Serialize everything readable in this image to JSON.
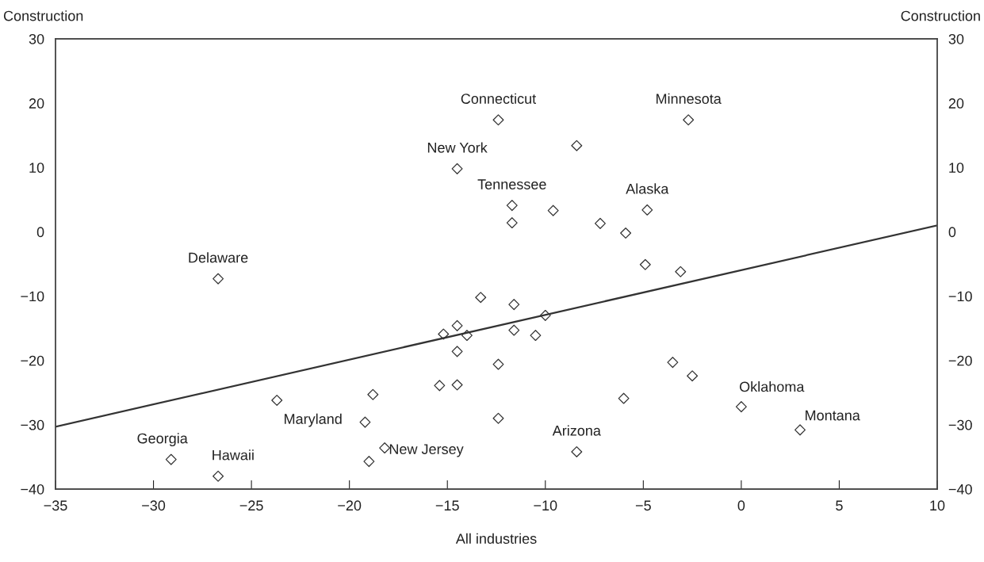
{
  "chart_data": {
    "type": "scatter",
    "xlabel": "All industries",
    "ylabel": "Construction",
    "y2label": "Construction",
    "xlim": [
      -35,
      10
    ],
    "xticks": [
      -35,
      -30,
      -25,
      -20,
      -15,
      -10,
      -5,
      0,
      5,
      10
    ],
    "ylim": [
      -40,
      30
    ],
    "yticks": [
      -40,
      -30,
      -20,
      -10,
      0,
      10,
      20,
      30
    ],
    "y2lim": [
      -40,
      30
    ],
    "y2ticks": [
      -40,
      -30,
      -20,
      -10,
      0,
      10,
      20,
      30
    ],
    "grid": false,
    "series": [
      {
        "marker": "diamond",
        "color": "#333333",
        "x": [
          -12.4,
          -2.7,
          -8.4,
          -14.5,
          -11.7,
          -9.6,
          -11.7,
          -7.2,
          -4.8,
          -5.9,
          -26.7,
          -4.9,
          -3.1,
          -13.3,
          -11.6,
          -10.0,
          -14.5,
          -15.2,
          -14.0,
          -11.6,
          -10.5,
          -14.5,
          -12.4,
          -3.5,
          -2.5,
          -15.4,
          -14.5,
          -18.8,
          -23.7,
          -6.0,
          0,
          3.0,
          -19.2,
          -12.4,
          -29.1,
          -26.7,
          -18.2,
          -19.0,
          -8.4
        ],
        "values": [
          17.4,
          17.4,
          13.4,
          9.8,
          4.1,
          3.3,
          1.4,
          1.3,
          3.4,
          -0.2,
          -7.3,
          -5.1,
          -6.2,
          -10.2,
          -11.3,
          -13.0,
          -14.6,
          -15.9,
          -16.1,
          -15.3,
          -16.1,
          -18.6,
          -20.6,
          -20.3,
          -22.4,
          -23.9,
          -23.8,
          -25.3,
          -26.2,
          -25.9,
          -27.2,
          -30.8,
          -29.6,
          -29.0,
          -35.4,
          -38.0,
          -33.6,
          -35.7,
          -34.2
        ]
      },
      {
        "type": "line",
        "marker": "none",
        "color": "#333333",
        "x": [
          -35,
          10
        ],
        "values": [
          -30.3,
          1.0
        ]
      }
    ],
    "annotations": [
      {
        "text": "Connecticut",
        "x": -12.4,
        "y": 17.4
      },
      {
        "text": "Minnesota",
        "x": -2.7,
        "y": 17.4
      },
      {
        "text": "New York",
        "x": -14.5,
        "y": 9.8
      },
      {
        "text": "Tennessee",
        "x": -11.7,
        "y": 4.1
      },
      {
        "text": "Alaska",
        "x": -4.8,
        "y": 3.4
      },
      {
        "text": "Delaware",
        "x": -26.7,
        "y": -7.3
      },
      {
        "text": "Maryland",
        "x": -23.7,
        "y": -26.2
      },
      {
        "text": "Oklahoma",
        "x": 0,
        "y": -27.2
      },
      {
        "text": "Montana",
        "x": 3.0,
        "y": -30.8
      },
      {
        "text": "Georgia",
        "x": -29.1,
        "y": -35.4
      },
      {
        "text": "Hawaii",
        "x": -26.7,
        "y": -38.0
      },
      {
        "text": "New Jersey",
        "x": -19.0,
        "y": -35.7
      },
      {
        "text": "Arizona",
        "x": -8.4,
        "y": -34.2
      }
    ]
  }
}
